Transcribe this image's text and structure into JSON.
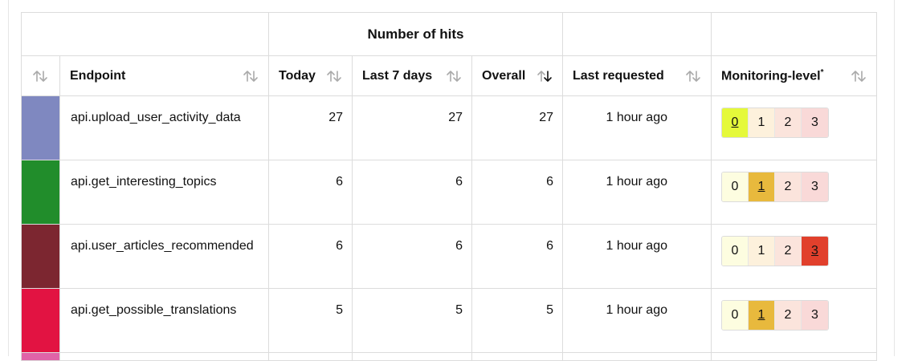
{
  "group_header": {
    "hits_label": "Number of hits"
  },
  "columns": {
    "endpoint": "Endpoint",
    "today": "Today",
    "last7": "Last 7 days",
    "overall": "Overall",
    "last_requested": "Last requested",
    "monitoring": "Monitoring-level",
    "monitoring_mark": "*"
  },
  "sort_icons": {
    "default": "sort-both-icon",
    "overall": "sort-descending-icon"
  },
  "level_labels": [
    "0",
    "1",
    "2",
    "3"
  ],
  "level_colors": {
    "inactive": [
      "#fdfde0",
      "#fdf1dc",
      "#fbe4dc",
      "#f9d9d8"
    ],
    "active": [
      "#e5f93a",
      "#e8b93d",
      "#f7d9d2",
      "#e1402c"
    ]
  },
  "rows": [
    {
      "color": "#7f88c0",
      "endpoint": "api.upload_user_activity_data",
      "today": "27",
      "last7": "27",
      "overall": "27",
      "last_requested": "1 hour ago",
      "level": 0
    },
    {
      "color": "#218d2b",
      "endpoint": "api.get_interesting_topics",
      "today": "6",
      "last7": "6",
      "overall": "6",
      "last_requested": "1 hour ago",
      "level": 1
    },
    {
      "color": "#7c2630",
      "endpoint": "api.user_articles_recommended",
      "today": "6",
      "last7": "6",
      "overall": "6",
      "last_requested": "1 hour ago",
      "level": 3
    },
    {
      "color": "#e21342",
      "endpoint": "api.get_possible_translations",
      "today": "5",
      "last7": "5",
      "overall": "5",
      "last_requested": "1 hour ago",
      "level": 1
    }
  ],
  "partial_row_color": "#e063a8"
}
